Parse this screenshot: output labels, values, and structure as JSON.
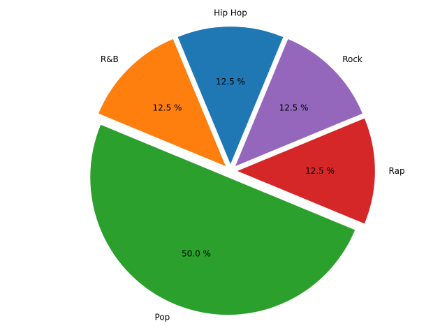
{
  "chart_data": {
    "type": "pie",
    "categories": [
      "Hip Hop",
      "R&B",
      "Pop",
      "Rap",
      "Rock"
    ],
    "values": [
      12.5,
      12.5,
      50.0,
      12.5,
      12.5
    ],
    "percent_labels": [
      "12.5 %",
      "12.5 %",
      "50.0 %",
      "12.5 %",
      "12.5 %"
    ],
    "colors": [
      "#1f77b4",
      "#ff7f0e",
      "#2ca02c",
      "#d62728",
      "#9467bd"
    ],
    "start_angle_deg": 67.5,
    "direction": "counterclockwise",
    "explode": [
      0.05,
      0.05,
      0.05,
      0.05,
      0.05
    ],
    "legend": "none",
    "title": ""
  }
}
